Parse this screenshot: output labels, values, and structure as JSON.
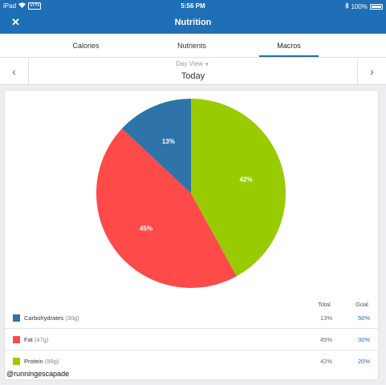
{
  "status_bar": {
    "device": "iPad",
    "vpn": "VPN",
    "time": "5:56 PM",
    "battery": "100%"
  },
  "nav": {
    "title": "Nutrition",
    "close": "✕"
  },
  "tabs": [
    {
      "label": "Calories",
      "active": false
    },
    {
      "label": "Nutrients",
      "active": false
    },
    {
      "label": "Macros",
      "active": true
    }
  ],
  "date_nav": {
    "view_select": "Day View",
    "current": "Today",
    "prev": "‹",
    "next": "›"
  },
  "chart_data": {
    "type": "pie",
    "slices": [
      {
        "label": "Protein",
        "value": 42,
        "color": "#99cc00"
      },
      {
        "label": "Fat",
        "value": 45,
        "color": "#ff4a4a"
      },
      {
        "label": "Carbohydrates",
        "value": 13,
        "color": "#2f74a8"
      }
    ]
  },
  "table": {
    "headers": {
      "total": "Total",
      "goal": "Goal"
    },
    "rows": [
      {
        "name": "Carbohydrates",
        "grams": "(30g)",
        "total": "13%",
        "goal": "50%",
        "color": "#2f74a8"
      },
      {
        "name": "Fat",
        "grams": "(47g)",
        "total": "45%",
        "goal": "30%",
        "color": "#ff4a4a"
      },
      {
        "name": "Protein",
        "grams": "(99g)",
        "total": "42%",
        "goal": "20%",
        "color": "#99cc00"
      }
    ]
  },
  "watermark": "@runningescapade"
}
